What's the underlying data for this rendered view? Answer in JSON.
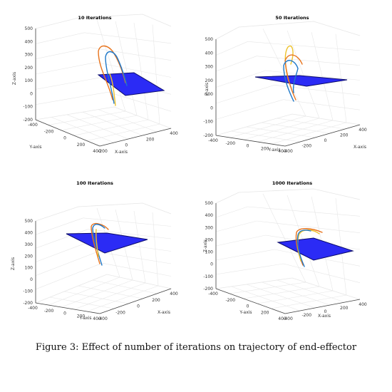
{
  "figure": {
    "caption": "Figure 3: Effect of number of iterations on trajectory of end-effector"
  },
  "colors": {
    "plane": "#2b2bf5",
    "plane_edge": "#0a0a6a",
    "grid": "#e6e6e6",
    "axis": "#444444",
    "series_blue": "#1f78c8",
    "series_orange": "#e8731c",
    "series_yellow": "#eec22a"
  },
  "chart_data": [
    {
      "type": "line",
      "title": "10 Iterations",
      "xlabel": "X-axis",
      "ylabel": "Y-axis",
      "zlabel": "Z-axis",
      "z_ticks": [
        "-200",
        "-100",
        "0",
        "100",
        "200",
        "300",
        "400",
        "500"
      ],
      "x_ticks": [
        "-200",
        "0",
        "200",
        "400"
      ],
      "y_ticks": [
        "-400",
        "-200",
        "0",
        "200",
        "400"
      ],
      "zlim": [
        -200,
        500
      ],
      "grid": true,
      "plane_z": 120
    },
    {
      "type": "line",
      "title": "50 Iterations",
      "xlabel": "X-axis",
      "ylabel": "Y-axis",
      "zlabel": "Z-axis",
      "z_ticks": [
        "-200",
        "-100",
        "0",
        "100",
        "200",
        "300",
        "400",
        "500"
      ],
      "x_ticks": [
        "-400",
        "-200",
        "0",
        "200",
        "400"
      ],
      "y_ticks": [
        "-400",
        "-200",
        "0",
        "200",
        "400"
      ],
      "zlim": [
        -200,
        500
      ],
      "grid": true,
      "plane_z": 200
    },
    {
      "type": "line",
      "title": "100 Iterations",
      "xlabel": "X-axis",
      "ylabel": "Y-axis",
      "zlabel": "Z-axis",
      "z_ticks": [
        "-200",
        "-100",
        "0",
        "100",
        "200",
        "300",
        "400",
        "500"
      ],
      "x_ticks": [
        "-400",
        "-200",
        "0",
        "200",
        "400"
      ],
      "y_ticks": [
        "-400",
        "-200",
        "0",
        "200",
        "400"
      ],
      "zlim": [
        -200,
        500
      ],
      "grid": true,
      "plane_z": 250
    },
    {
      "type": "line",
      "title": "1000 Iterations",
      "xlabel": "X-axis",
      "ylabel": "Y-axis",
      "zlabel": "Z-axis",
      "z_ticks": [
        "-200",
        "-100",
        "0",
        "100",
        "200",
        "300",
        "400",
        "500"
      ],
      "x_ticks": [
        "-400",
        "-200",
        "0",
        "200",
        "400"
      ],
      "y_ticks": [
        "-400",
        "-200",
        "0",
        "200",
        "400"
      ],
      "zlim": [
        -200,
        500
      ],
      "grid": true,
      "plane_z": 180
    }
  ]
}
